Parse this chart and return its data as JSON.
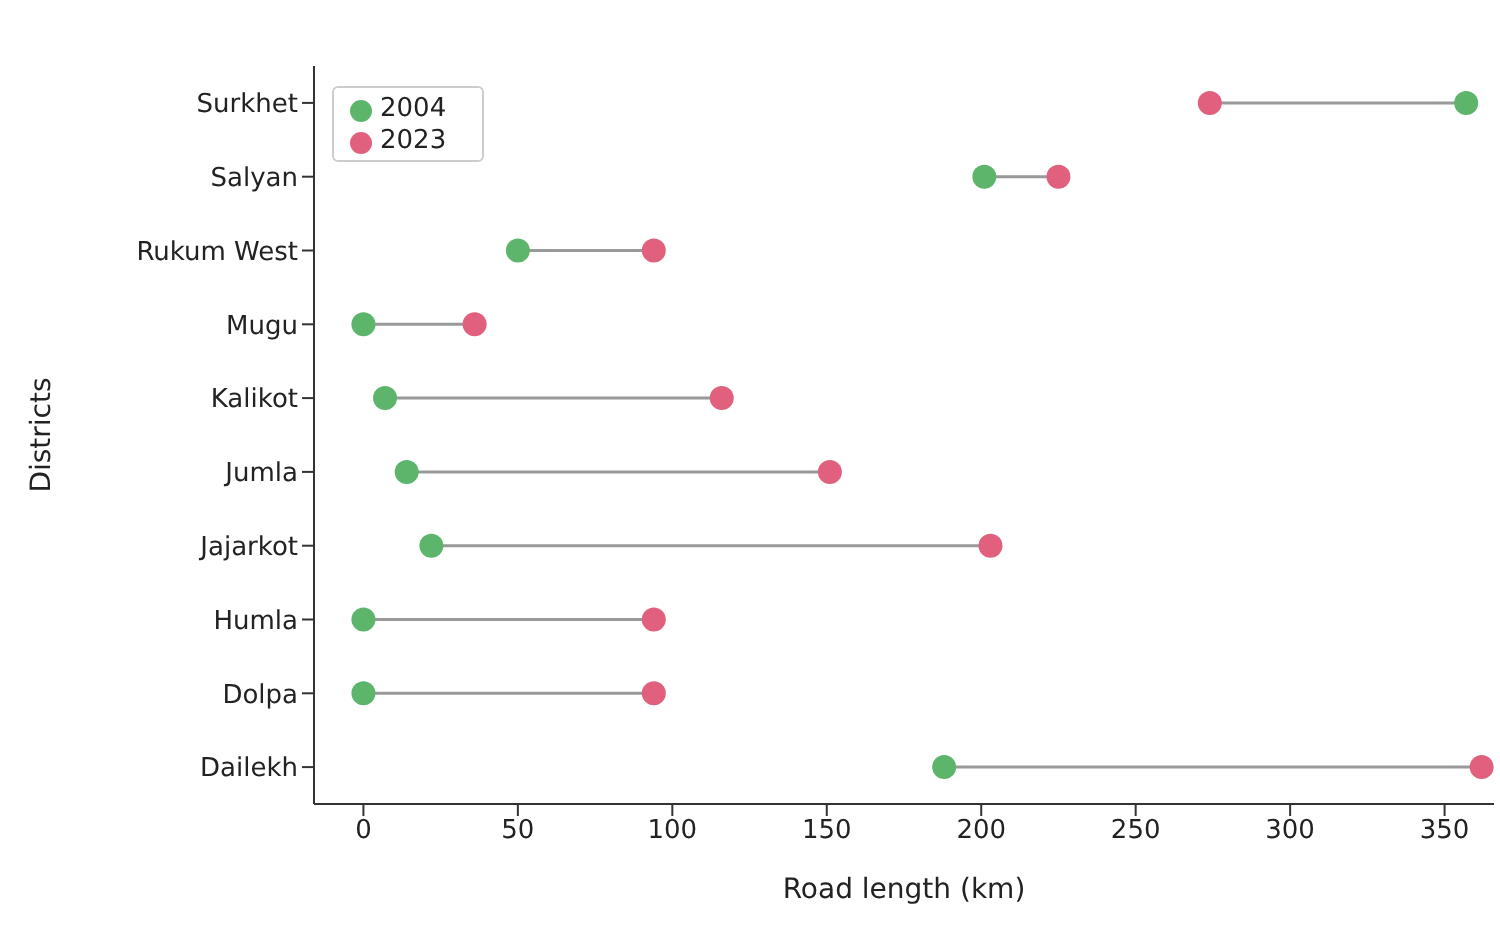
{
  "chart_data": {
    "type": "scatter",
    "orientation": "horizontal",
    "xlabel": "Road length (km)",
    "ylabel": "Districts",
    "categories": [
      "Surkhet",
      "Salyan",
      "Rukum West",
      "Mugu",
      "Kalikot",
      "Jumla",
      "Jajarkot",
      "Humla",
      "Dolpa",
      "Dailekh"
    ],
    "series": [
      {
        "name": "2004",
        "color": "#5cb56b",
        "values": [
          357,
          201,
          50,
          0,
          7,
          14,
          22,
          0,
          0,
          188
        ]
      },
      {
        "name": "2023",
        "color": "#e0607e",
        "values": [
          274,
          225,
          94,
          36,
          116,
          151,
          203,
          94,
          94,
          362
        ]
      }
    ],
    "xlim": [
      -16,
      366
    ],
    "xticks": [
      0,
      50,
      100,
      150,
      200,
      250,
      300,
      350
    ],
    "marker": "circle",
    "legend": "top left",
    "grid": false
  }
}
